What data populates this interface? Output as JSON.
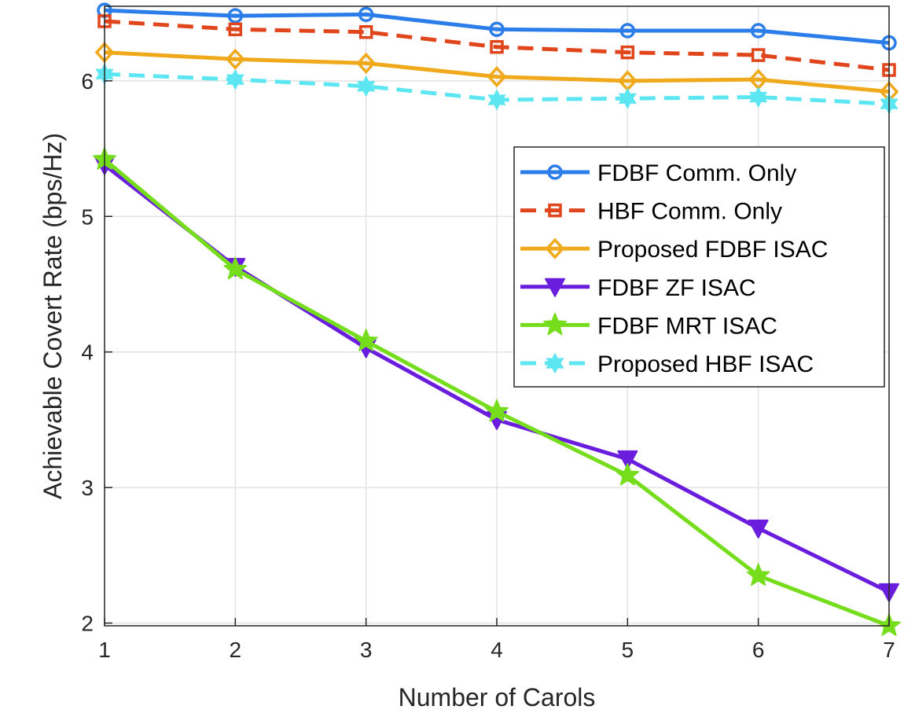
{
  "chart_data": {
    "type": "line",
    "xlabel": "Number of Carols",
    "ylabel": "Achievable Covert Rate (bps/Hz)",
    "x": [
      1,
      2,
      3,
      4,
      5,
      6,
      7
    ],
    "xlim": [
      1,
      7
    ],
    "ylim": [
      1.98,
      6.55
    ],
    "xticks": [
      "1",
      "2",
      "3",
      "4",
      "5",
      "6",
      "7"
    ],
    "yticks": [
      "2",
      "3",
      "4",
      "5",
      "6"
    ],
    "grid": true,
    "legend_position": "right",
    "series": [
      {
        "name": "FDBF Comm. Only",
        "values": [
          6.52,
          6.48,
          6.49,
          6.38,
          6.37,
          6.37,
          6.28
        ],
        "color": "#2b7de9",
        "marker": "circle",
        "dash": "solid"
      },
      {
        "name": "HBF Comm. Only",
        "values": [
          6.44,
          6.38,
          6.36,
          6.25,
          6.21,
          6.19,
          6.08
        ],
        "color": "#e0451b",
        "marker": "square",
        "dash": "dashed"
      },
      {
        "name": "Proposed FDBF ISAC",
        "values": [
          6.21,
          6.16,
          6.13,
          6.03,
          6.0,
          6.01,
          5.92
        ],
        "color": "#efa91b",
        "marker": "diamond",
        "dash": "solid"
      },
      {
        "name": "FDBF ZF ISAC",
        "values": [
          5.38,
          4.63,
          4.03,
          3.5,
          3.21,
          2.7,
          2.23
        ],
        "color": "#6a1ddd",
        "marker": "triangle-down",
        "dash": "solid"
      },
      {
        "name": "FDBF MRT ISAC",
        "values": [
          5.42,
          4.61,
          4.08,
          3.56,
          3.09,
          2.35,
          1.98
        ],
        "color": "#75dd1b",
        "marker": "pentagram",
        "dash": "solid"
      },
      {
        "name": "Proposed HBF ISAC",
        "values": [
          6.05,
          6.01,
          5.96,
          5.86,
          5.87,
          5.88,
          5.83
        ],
        "color": "#5ce6f2",
        "marker": "hexagram",
        "dash": "dashed"
      }
    ]
  }
}
